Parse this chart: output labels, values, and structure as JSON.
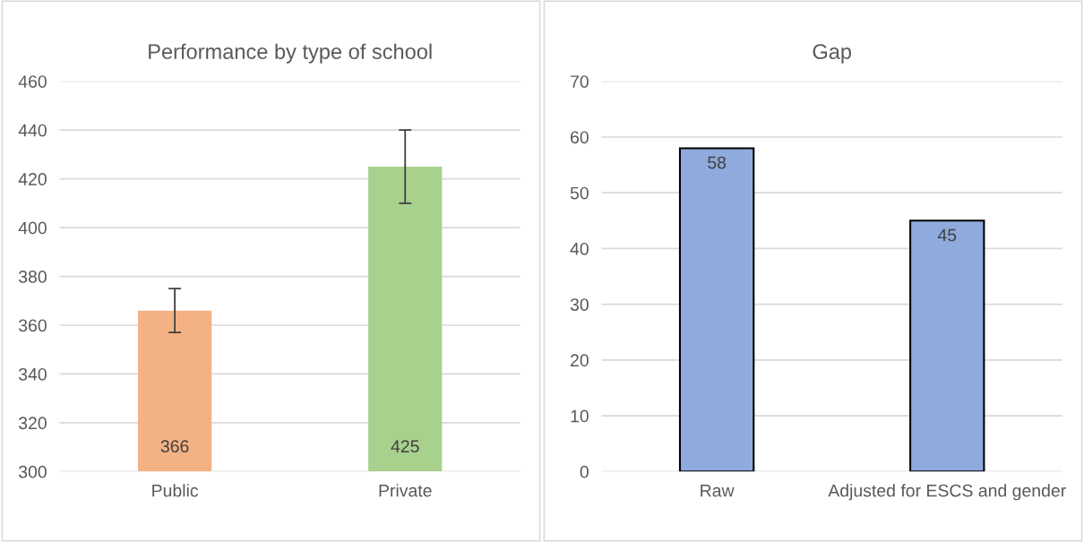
{
  "chart_data": [
    {
      "type": "bar",
      "title": "Performance by type of school",
      "categories": [
        "Public",
        "Private"
      ],
      "values": [
        366,
        425
      ],
      "colors": [
        "#f4b183",
        "#a9d18e"
      ],
      "errors": [
        9,
        15
      ],
      "ylim": [
        300,
        460
      ],
      "yticks": [
        300,
        320,
        340,
        360,
        380,
        400,
        420,
        440,
        460
      ],
      "grid": "y",
      "data_labels": true
    },
    {
      "type": "bar",
      "title": "Gap",
      "categories": [
        "Raw",
        "Adjusted for ESCS and gender"
      ],
      "values": [
        58,
        45
      ],
      "colors": [
        "#8faadc",
        "#8faadc"
      ],
      "ylim": [
        0,
        70
      ],
      "yticks": [
        0,
        10,
        20,
        30,
        40,
        50,
        60,
        70
      ],
      "grid": "y",
      "data_labels": true
    }
  ]
}
